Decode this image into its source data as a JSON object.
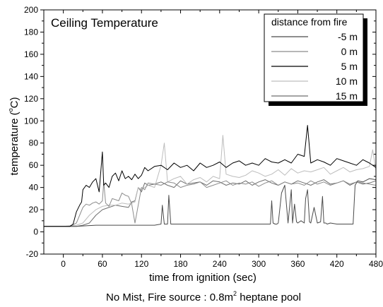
{
  "chart_data": {
    "type": "line",
    "title": "Ceiling Temperature",
    "xlabel": "time from ignition (sec)",
    "ylabel_parts": [
      "temperature (",
      "o",
      "C)"
    ],
    "caption_parts": [
      "No Mist, Fire source : 0.8m",
      "2",
      " heptane pool"
    ],
    "xlim": [
      -30,
      480
    ],
    "ylim": [
      -20,
      200
    ],
    "xticks": [
      0,
      60,
      120,
      180,
      240,
      300,
      360,
      420,
      480
    ],
    "yticks": [
      -20,
      0,
      20,
      40,
      60,
      80,
      100,
      120,
      140,
      160,
      180,
      200
    ],
    "legend": {
      "title": "distance from fire",
      "position": "top-right"
    },
    "series": [
      {
        "name": "-5 m",
        "color": "#4a4a4a",
        "x": [
          -30,
          0,
          20,
          50,
          100,
          140,
          150,
          152,
          155,
          160,
          162,
          165,
          180,
          200,
          240,
          290,
          318,
          320,
          322,
          325,
          328,
          330,
          335,
          340,
          345,
          350,
          352,
          355,
          358,
          360,
          365,
          370,
          372,
          375,
          378,
          380,
          385,
          390,
          395,
          398,
          400,
          403,
          405,
          410,
          420,
          430,
          440,
          445,
          448,
          452,
          460,
          470,
          480
        ],
        "y": [
          5,
          5,
          5,
          6,
          6,
          6,
          7,
          24,
          7,
          7,
          33,
          7,
          7,
          7,
          7,
          7,
          7,
          28,
          8,
          7,
          7,
          8,
          35,
          42,
          8,
          38,
          8,
          25,
          9,
          8,
          10,
          8,
          30,
          38,
          9,
          8,
          22,
          8,
          9,
          32,
          8,
          8,
          7,
          8,
          7,
          7,
          7,
          7,
          42,
          46,
          45,
          48,
          47
        ]
      },
      {
        "name": "0 m",
        "color": "#8c8c8c",
        "x": [
          -30,
          0,
          10,
          20,
          25,
          30,
          35,
          40,
          45,
          50,
          55,
          60,
          62,
          65,
          70,
          75,
          80,
          85,
          90,
          95,
          100,
          105,
          110,
          115,
          120,
          125,
          130,
          140,
          150,
          160,
          170,
          180,
          190,
          200,
          210,
          220,
          230,
          240,
          250,
          260,
          270,
          280,
          290,
          300,
          310,
          320,
          330,
          340,
          350,
          360,
          370,
          380,
          390,
          400,
          410,
          420,
          430,
          440,
          450,
          460,
          470,
          480
        ],
        "y": [
          5,
          5,
          5,
          8,
          15,
          22,
          25,
          24,
          26,
          27,
          25,
          28,
          45,
          26,
          23,
          30,
          29,
          28,
          35,
          33,
          32,
          25,
          8,
          24,
          40,
          38,
          44,
          43,
          42,
          45,
          44,
          40,
          42,
          43,
          45,
          40,
          42,
          44,
          46,
          42,
          44,
          43,
          45,
          41,
          44,
          46,
          42,
          45,
          43,
          44,
          42,
          46,
          43,
          45,
          42,
          44,
          46,
          43,
          45,
          44,
          43,
          42
        ]
      },
      {
        "name": "5 m",
        "color": "#000000",
        "x": [
          -30,
          0,
          10,
          15,
          20,
          25,
          28,
          30,
          35,
          40,
          45,
          50,
          55,
          58,
          60,
          62,
          65,
          70,
          75,
          80,
          85,
          90,
          95,
          100,
          105,
          110,
          115,
          120,
          125,
          130,
          140,
          150,
          160,
          170,
          180,
          190,
          200,
          210,
          220,
          230,
          240,
          250,
          260,
          270,
          280,
          290,
          300,
          310,
          320,
          330,
          340,
          350,
          360,
          370,
          375,
          380,
          390,
          400,
          410,
          420,
          430,
          440,
          450,
          460,
          470,
          480
        ],
        "y": [
          5,
          5,
          5,
          7,
          18,
          24,
          27,
          38,
          42,
          40,
          45,
          48,
          36,
          58,
          72,
          42,
          44,
          40,
          50,
          53,
          46,
          55,
          48,
          50,
          47,
          52,
          48,
          51,
          58,
          55,
          59,
          60,
          56,
          62,
          58,
          60,
          55,
          62,
          58,
          60,
          63,
          58,
          62,
          64,
          60,
          62,
          60,
          66,
          63,
          62,
          65,
          62,
          70,
          68,
          96,
          62,
          65,
          63,
          60,
          66,
          64,
          62,
          60,
          65,
          62,
          58
        ]
      },
      {
        "name": "10 m",
        "color": "#bdbdbd",
        "x": [
          -30,
          0,
          20,
          30,
          40,
          50,
          60,
          70,
          80,
          90,
          100,
          110,
          115,
          120,
          130,
          140,
          150,
          155,
          160,
          170,
          180,
          190,
          200,
          210,
          220,
          230,
          240,
          245,
          250,
          260,
          270,
          280,
          290,
          300,
          310,
          320,
          330,
          340,
          350,
          360,
          370,
          380,
          390,
          400,
          410,
          420,
          430,
          440,
          450,
          460,
          470,
          475,
          480
        ],
        "y": [
          5,
          5,
          6,
          8,
          15,
          20,
          23,
          24,
          24,
          26,
          25,
          27,
          40,
          38,
          42,
          40,
          60,
          80,
          45,
          48,
          50,
          43,
          47,
          49,
          45,
          50,
          48,
          87,
          52,
          50,
          49,
          51,
          55,
          53,
          50,
          52,
          56,
          51,
          57,
          53,
          55,
          54,
          56,
          58,
          52,
          55,
          58,
          54,
          56,
          57,
          59,
          74,
          55
        ]
      },
      {
        "name": "15 m",
        "color": "#6e6e6e",
        "x": [
          -30,
          0,
          20,
          30,
          40,
          50,
          60,
          70,
          80,
          90,
          100,
          105,
          110,
          115,
          120,
          125,
          130,
          140,
          150,
          160,
          170,
          180,
          190,
          200,
          210,
          220,
          230,
          240,
          250,
          260,
          270,
          280,
          290,
          300,
          310,
          320,
          330,
          340,
          350,
          360,
          370,
          380,
          390,
          400,
          410,
          420,
          430,
          440,
          450,
          460,
          470,
          480
        ],
        "y": [
          5,
          5,
          5,
          6,
          8,
          15,
          20,
          22,
          24,
          23,
          22,
          27,
          28,
          40,
          36,
          44,
          42,
          43,
          45,
          42,
          40,
          46,
          43,
          44,
          45,
          42,
          46,
          45,
          42,
          44,
          43,
          46,
          42,
          45,
          47,
          44,
          42,
          45,
          43,
          46,
          44,
          42,
          45,
          47,
          43,
          44,
          46,
          42,
          45,
          43,
          44,
          46
        ]
      }
    ]
  }
}
